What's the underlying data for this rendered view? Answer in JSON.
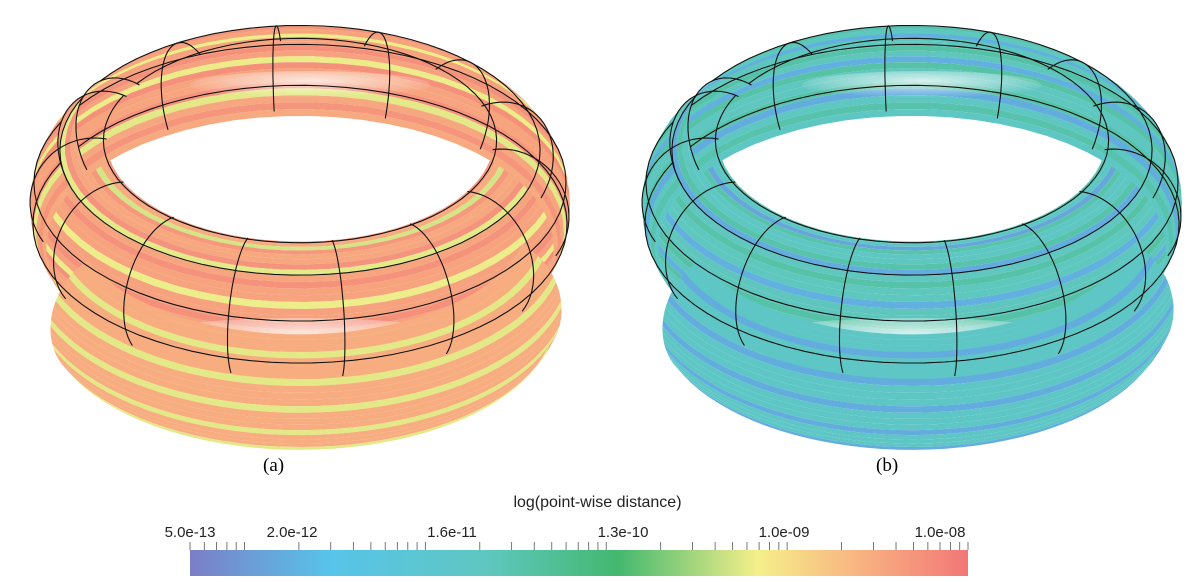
{
  "panels": [
    {
      "caption": "(a)",
      "colormap_position": 0.88
    },
    {
      "caption": "(b)",
      "colormap_position": 0.34
    }
  ],
  "colorbar": {
    "title": "log(point-wise distance)",
    "scale": "log",
    "range": [
      "5.0e-13",
      "1.0e-08"
    ],
    "tick_labels": [
      "5.0e-13",
      "2.0e-12",
      "1.6e-11",
      "1.3e-10",
      "1.0e-09",
      "1.0e-08"
    ],
    "colors": [
      "#7b7ec6",
      "#57c4ea",
      "#5fc7c0",
      "#43b86f",
      "#f5ef8a",
      "#f8b381",
      "#f27777"
    ]
  }
}
